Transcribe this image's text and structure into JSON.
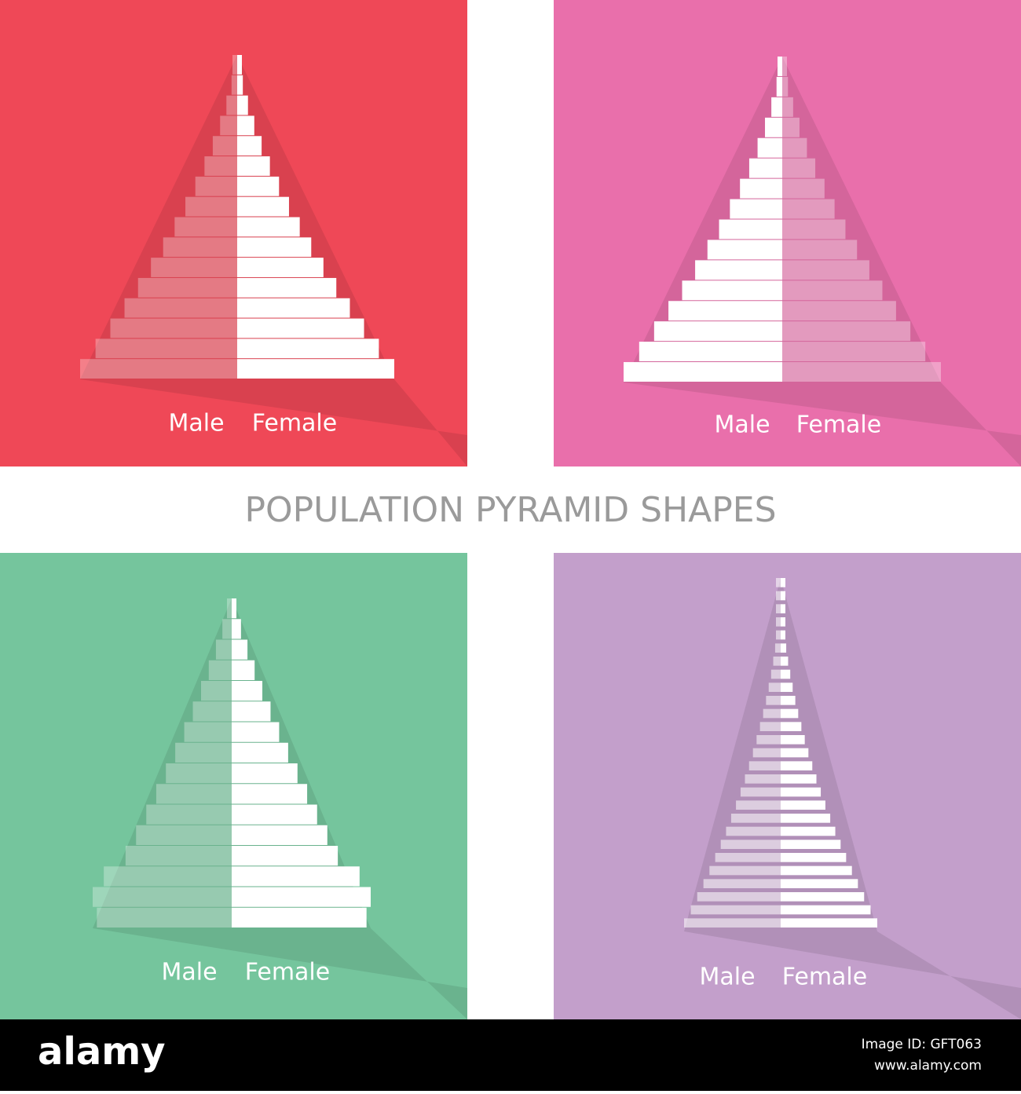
{
  "title": "POPULATION PYRAMID SHAPES",
  "panels": [
    {
      "male": "Male",
      "female": "Female"
    },
    {
      "male": "Male",
      "female": "Female"
    },
    {
      "male": "Male",
      "female": "Female"
    },
    {
      "male": "Male",
      "female": "Female"
    }
  ],
  "footer": {
    "brand": "alamy",
    "image_id": "Image ID: GFT063",
    "url": "www.alamy.com"
  }
}
